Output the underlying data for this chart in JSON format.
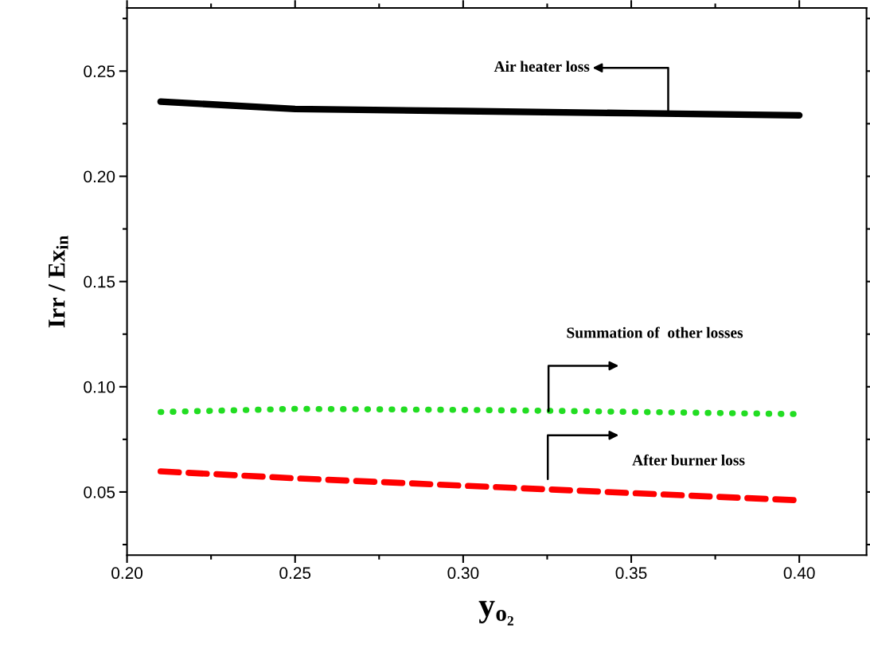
{
  "chart_data": {
    "type": "line",
    "xlabel": "y$_{o₂}$",
    "ylabel": "Irr / Ex$_{in}$",
    "xlim": [
      0.2,
      0.42
    ],
    "xticks": [
      {
        "value": 0.2,
        "label": "0.20"
      },
      {
        "value": 0.25,
        "label": "0.25"
      },
      {
        "value": 0.3,
        "label": "0.30"
      },
      {
        "value": 0.35,
        "label": "0.35"
      },
      {
        "value": 0.4,
        "label": "0.40"
      }
    ],
    "ylim": [
      0.02,
      0.28
    ],
    "yticks": [
      {
        "value": 0.05,
        "label": "0.05"
      },
      {
        "value": 0.1,
        "label": "0.10"
      },
      {
        "value": 0.15,
        "label": "0.15"
      },
      {
        "value": 0.2,
        "label": "0.20"
      },
      {
        "value": 0.25,
        "label": "0.25"
      }
    ],
    "grid": false,
    "legend": false,
    "marker": "none",
    "series": [
      {
        "color": "#000000",
        "line_style": "solid",
        "x": [
          0.21,
          0.25,
          0.3,
          0.35,
          0.4
        ],
        "values": [
          0.2355,
          0.232,
          0.231,
          0.23,
          0.229
        ]
      },
      {
        "color": "#22dd22",
        "line_style": "dotted",
        "x": [
          0.21,
          0.25,
          0.3,
          0.33,
          0.4
        ],
        "values": [
          0.088,
          0.0895,
          0.089,
          0.0885,
          0.087
        ]
      },
      {
        "color": "#ff0000",
        "line_style": "dashed",
        "x": [
          0.21,
          0.25,
          0.3,
          0.35,
          0.4
        ],
        "values": [
          0.0598,
          0.0565,
          0.053,
          0.0495,
          0.046
        ]
      }
    ],
    "annotations": [
      {
        "text": "Air heater loss",
        "x": 0.361,
        "y": 0.23
      },
      "Summation of  other losses",
      "After burner loss"
    ]
  }
}
